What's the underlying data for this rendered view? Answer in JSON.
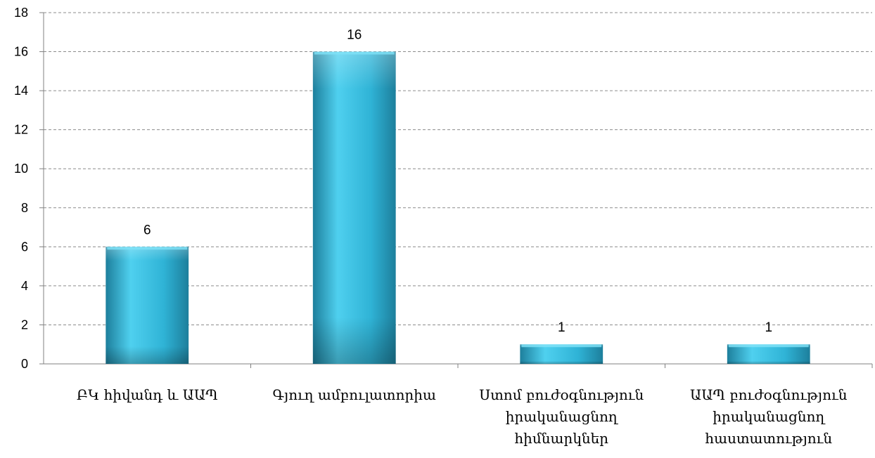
{
  "chart_data": {
    "type": "bar",
    "categories": [
      [
        "ԲԿ հիվանդ և ԱԱՊ"
      ],
      [
        "Գյուղ ամբուլատորիա"
      ],
      [
        "Ստոմ բուժօգնություն",
        "իրականացնող",
        "հիմնարկներ"
      ],
      [
        "ԱԱՊ բուժօգնություն",
        "իրականացնող",
        "հաստատություն"
      ]
    ],
    "values": [
      6,
      16,
      1,
      1
    ],
    "data_labels": [
      "6",
      "16",
      "1",
      "1"
    ],
    "ylim": [
      0,
      18
    ],
    "yticks": [
      0,
      2,
      4,
      6,
      8,
      10,
      12,
      14,
      16,
      18
    ],
    "grid": true,
    "legend": "none",
    "colors": {
      "bar_light": "#4fd0ef",
      "bar_mid": "#2fb3d6",
      "bar_dark": "#1d7f9c",
      "grid": "#8c8c8c",
      "axis": "#808080"
    }
  }
}
